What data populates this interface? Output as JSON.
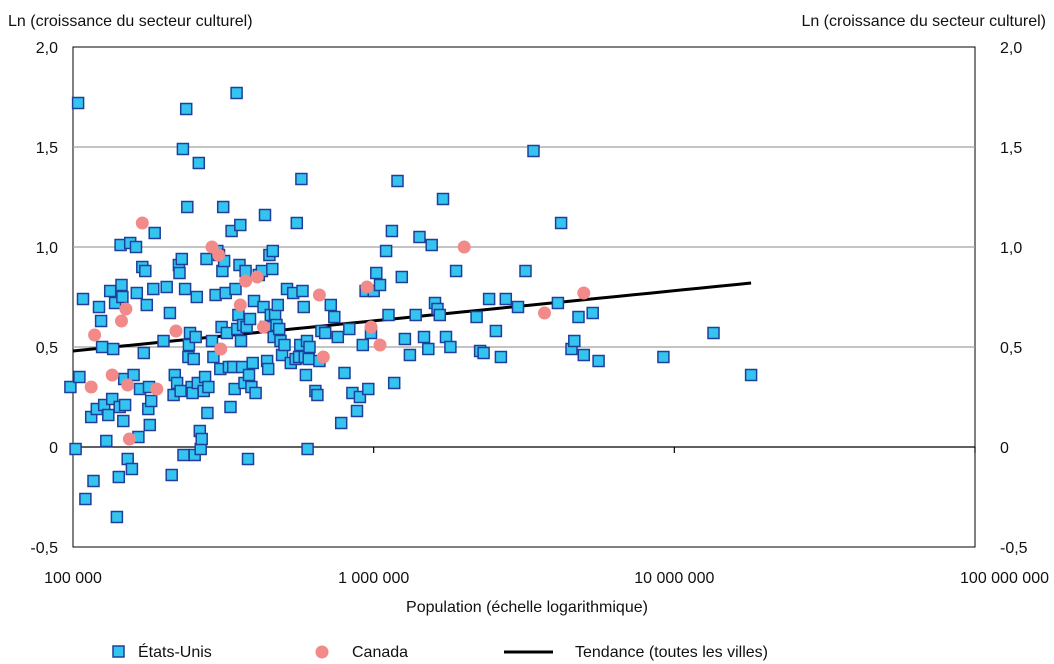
{
  "chart_data": {
    "type": "scatter",
    "y_left_label": "Ln (croissance du secteur culturel)",
    "y_right_label": "Ln (croissance du secteur culturel)",
    "xlabel": "Population (échelle logarithmique)",
    "x_scale": "log",
    "xlim": [
      100000,
      100000000
    ],
    "ylim": [
      -0.5,
      2.0
    ],
    "x_ticks": [
      100000,
      1000000,
      10000000,
      100000000
    ],
    "x_tick_labels": [
      "100 000",
      "1 000 000",
      "10 000 000",
      "100 000 000"
    ],
    "y_ticks": [
      -0.5,
      0,
      0.5,
      1.0,
      1.5,
      2.0
    ],
    "y_tick_labels": [
      "-0,5",
      "0",
      "0,5",
      "1,0",
      "1,5",
      "2,0"
    ],
    "grid": "horizontal",
    "legend_position": "bottom",
    "colors": {
      "us_fill": "#33c4f0",
      "us_edge": "#1f3f9a",
      "canada": "#f28a8a",
      "trend": "#000000",
      "grid": "#a0a0a0"
    },
    "series": [
      {
        "name": "États-Unis",
        "kind": "scatter",
        "marker": "square",
        "points": [
          [
            98000,
            0.3
          ],
          [
            102000,
            -0.01
          ],
          [
            104000,
            1.72
          ],
          [
            105000,
            0.35
          ],
          [
            108000,
            0.74
          ],
          [
            110000,
            -0.26
          ],
          [
            115000,
            0.15
          ],
          [
            117000,
            -0.17
          ],
          [
            120000,
            0.19
          ],
          [
            122000,
            0.7
          ],
          [
            124000,
            0.63
          ],
          [
            125000,
            0.5
          ],
          [
            127000,
            0.21
          ],
          [
            129000,
            0.03
          ],
          [
            131000,
            0.16
          ],
          [
            133000,
            0.78
          ],
          [
            135000,
            0.24
          ],
          [
            136000,
            0.49
          ],
          [
            138000,
            0.72
          ],
          [
            140000,
            -0.35
          ],
          [
            142000,
            -0.15
          ],
          [
            143000,
            0.2
          ],
          [
            144000,
            1.01
          ],
          [
            145000,
            0.81
          ],
          [
            146000,
            0.75
          ],
          [
            147000,
            0.13
          ],
          [
            148000,
            0.34
          ],
          [
            149000,
            0.21
          ],
          [
            152000,
            -0.06
          ],
          [
            155000,
            1.02
          ],
          [
            157000,
            -0.11
          ],
          [
            159000,
            0.36
          ],
          [
            162000,
            1.0
          ],
          [
            163000,
            0.77
          ],
          [
            165000,
            0.05
          ],
          [
            167000,
            0.29
          ],
          [
            170000,
            0.9
          ],
          [
            172000,
            0.47
          ],
          [
            174000,
            0.88
          ],
          [
            176000,
            0.71
          ],
          [
            178000,
            0.19
          ],
          [
            179000,
            0.3
          ],
          [
            180000,
            0.11
          ],
          [
            182000,
            0.23
          ],
          [
            185000,
            0.79
          ],
          [
            187000,
            1.07
          ],
          [
            200000,
            0.53
          ],
          [
            205000,
            0.8
          ],
          [
            210000,
            0.67
          ],
          [
            213000,
            -0.14
          ],
          [
            216000,
            0.26
          ],
          [
            218000,
            0.36
          ],
          [
            222000,
            0.32
          ],
          [
            225000,
            0.91
          ],
          [
            226000,
            0.87
          ],
          [
            228000,
            0.28
          ],
          [
            230000,
            0.94
          ],
          [
            232000,
            1.49
          ],
          [
            233000,
            -0.04
          ],
          [
            236000,
            0.79
          ],
          [
            238000,
            1.69
          ],
          [
            240000,
            1.2
          ],
          [
            242000,
            0.45
          ],
          [
            243000,
            0.51
          ],
          [
            245000,
            0.57
          ],
          [
            248000,
            0.3
          ],
          [
            250000,
            0.27
          ],
          [
            252000,
            0.44
          ],
          [
            254000,
            -0.04
          ],
          [
            256000,
            0.55
          ],
          [
            258000,
            0.75
          ],
          [
            260000,
            0.32
          ],
          [
            262000,
            1.42
          ],
          [
            264000,
            0.08
          ],
          [
            266000,
            -0.01
          ],
          [
            268000,
            0.04
          ],
          [
            272000,
            0.28
          ],
          [
            275000,
            0.35
          ],
          [
            278000,
            0.94
          ],
          [
            280000,
            0.17
          ],
          [
            282000,
            0.3
          ],
          [
            290000,
            0.53
          ],
          [
            293000,
            0.45
          ],
          [
            298000,
            0.76
          ],
          [
            302000,
            0.98
          ],
          [
            306000,
            0.96
          ],
          [
            309000,
            0.39
          ],
          [
            312000,
            0.6
          ],
          [
            314000,
            0.88
          ],
          [
            316000,
            1.2
          ],
          [
            318000,
            0.93
          ],
          [
            322000,
            0.77
          ],
          [
            325000,
            0.57
          ],
          [
            330000,
            0.4
          ],
          [
            334000,
            0.2
          ],
          [
            337000,
            1.08
          ],
          [
            341000,
            0.4
          ],
          [
            345000,
            0.29
          ],
          [
            347000,
            0.79
          ],
          [
            350000,
            1.77
          ],
          [
            352000,
            0.59
          ],
          [
            355000,
            0.66
          ],
          [
            358000,
            0.91
          ],
          [
            360000,
            1.11
          ],
          [
            362000,
            0.53
          ],
          [
            365000,
            0.4
          ],
          [
            368000,
            0.61
          ],
          [
            372000,
            0.32
          ],
          [
            375000,
            0.88
          ],
          [
            378000,
            0.6
          ],
          [
            382000,
            -0.06
          ],
          [
            385000,
            0.36
          ],
          [
            388000,
            0.64
          ],
          [
            392000,
            0.3
          ],
          [
            396000,
            0.42
          ],
          [
            400000,
            0.73
          ],
          [
            405000,
            0.27
          ],
          [
            415000,
            0.86
          ],
          [
            425000,
            0.88
          ],
          [
            430000,
            0.7
          ],
          [
            435000,
            1.16
          ],
          [
            438000,
            0.6
          ],
          [
            442000,
            0.43
          ],
          [
            446000,
            0.39
          ],
          [
            450000,
            0.96
          ],
          [
            455000,
            0.66
          ],
          [
            460000,
            0.89
          ],
          [
            462000,
            0.98
          ],
          [
            465000,
            0.55
          ],
          [
            470000,
            0.66
          ],
          [
            475000,
            0.61
          ],
          [
            480000,
            0.71
          ],
          [
            485000,
            0.59
          ],
          [
            490000,
            0.53
          ],
          [
            496000,
            0.46
          ],
          [
            505000,
            0.51
          ],
          [
            515000,
            0.79
          ],
          [
            530000,
            0.42
          ],
          [
            540000,
            0.77
          ],
          [
            550000,
            0.44
          ],
          [
            555000,
            1.12
          ],
          [
            565000,
            0.45
          ],
          [
            570000,
            0.51
          ],
          [
            575000,
            1.34
          ],
          [
            580000,
            0.78
          ],
          [
            585000,
            0.7
          ],
          [
            590000,
            0.45
          ],
          [
            595000,
            0.36
          ],
          [
            600000,
            0.53
          ],
          [
            603000,
            -0.01
          ],
          [
            608000,
            0.44
          ],
          [
            612000,
            0.5
          ],
          [
            640000,
            0.28
          ],
          [
            650000,
            0.26
          ],
          [
            660000,
            0.43
          ],
          [
            670000,
            0.58
          ],
          [
            690000,
            0.57
          ],
          [
            720000,
            0.71
          ],
          [
            740000,
            0.65
          ],
          [
            760000,
            0.55
          ],
          [
            780000,
            0.12
          ],
          [
            800000,
            0.37
          ],
          [
            830000,
            0.59
          ],
          [
            850000,
            0.27
          ],
          [
            880000,
            0.18
          ],
          [
            900000,
            0.25
          ],
          [
            920000,
            0.51
          ],
          [
            940000,
            0.78
          ],
          [
            960000,
            0.29
          ],
          [
            980000,
            0.57
          ],
          [
            1000000,
            0.78
          ],
          [
            1020000,
            0.87
          ],
          [
            1050000,
            0.81
          ],
          [
            1100000,
            0.98
          ],
          [
            1120000,
            0.66
          ],
          [
            1150000,
            1.08
          ],
          [
            1170000,
            0.32
          ],
          [
            1200000,
            1.33
          ],
          [
            1240000,
            0.85
          ],
          [
            1270000,
            0.54
          ],
          [
            1320000,
            0.46
          ],
          [
            1380000,
            0.66
          ],
          [
            1420000,
            1.05
          ],
          [
            1470000,
            0.55
          ],
          [
            1520000,
            0.49
          ],
          [
            1560000,
            1.01
          ],
          [
            1600000,
            0.72
          ],
          [
            1630000,
            0.69
          ],
          [
            1660000,
            0.66
          ],
          [
            1700000,
            1.24
          ],
          [
            1740000,
            0.55
          ],
          [
            1800000,
            0.5
          ],
          [
            1880000,
            0.88
          ],
          [
            2200000,
            0.65
          ],
          [
            2260000,
            0.48
          ],
          [
            2320000,
            0.47
          ],
          [
            2420000,
            0.74
          ],
          [
            2550000,
            0.58
          ],
          [
            2650000,
            0.45
          ],
          [
            2750000,
            0.74
          ],
          [
            3020000,
            0.7
          ],
          [
            3200000,
            0.88
          ],
          [
            3400000,
            1.48
          ],
          [
            4100000,
            0.72
          ],
          [
            4200000,
            1.12
          ],
          [
            4550000,
            0.49
          ],
          [
            4650000,
            0.53
          ],
          [
            4800000,
            0.65
          ],
          [
            5000000,
            0.46
          ],
          [
            5350000,
            0.67
          ],
          [
            5600000,
            0.43
          ],
          [
            9200000,
            0.45
          ],
          [
            13500000,
            0.57
          ],
          [
            18000000,
            0.36
          ]
        ]
      },
      {
        "name": "Canada",
        "kind": "scatter",
        "marker": "circle",
        "points": [
          [
            115000,
            0.3
          ],
          [
            118000,
            0.56
          ],
          [
            135000,
            0.36
          ],
          [
            145000,
            0.63
          ],
          [
            150000,
            0.69
          ],
          [
            152000,
            0.31
          ],
          [
            154000,
            0.04
          ],
          [
            170000,
            1.12
          ],
          [
            190000,
            0.29
          ],
          [
            220000,
            0.58
          ],
          [
            290000,
            1.0
          ],
          [
            305000,
            0.96
          ],
          [
            310000,
            0.49
          ],
          [
            360000,
            0.71
          ],
          [
            375000,
            0.83
          ],
          [
            410000,
            0.85
          ],
          [
            430000,
            0.6
          ],
          [
            660000,
            0.76
          ],
          [
            680000,
            0.45
          ],
          [
            950000,
            0.8
          ],
          [
            980000,
            0.6
          ],
          [
            1050000,
            0.51
          ],
          [
            2000000,
            1.0
          ],
          [
            3700000,
            0.67
          ],
          [
            5000000,
            0.77
          ]
        ]
      },
      {
        "name": "Tendance (toutes les villes)",
        "kind": "line",
        "points": [
          [
            100000,
            0.48
          ],
          [
            18000000,
            0.82
          ]
        ]
      }
    ]
  }
}
